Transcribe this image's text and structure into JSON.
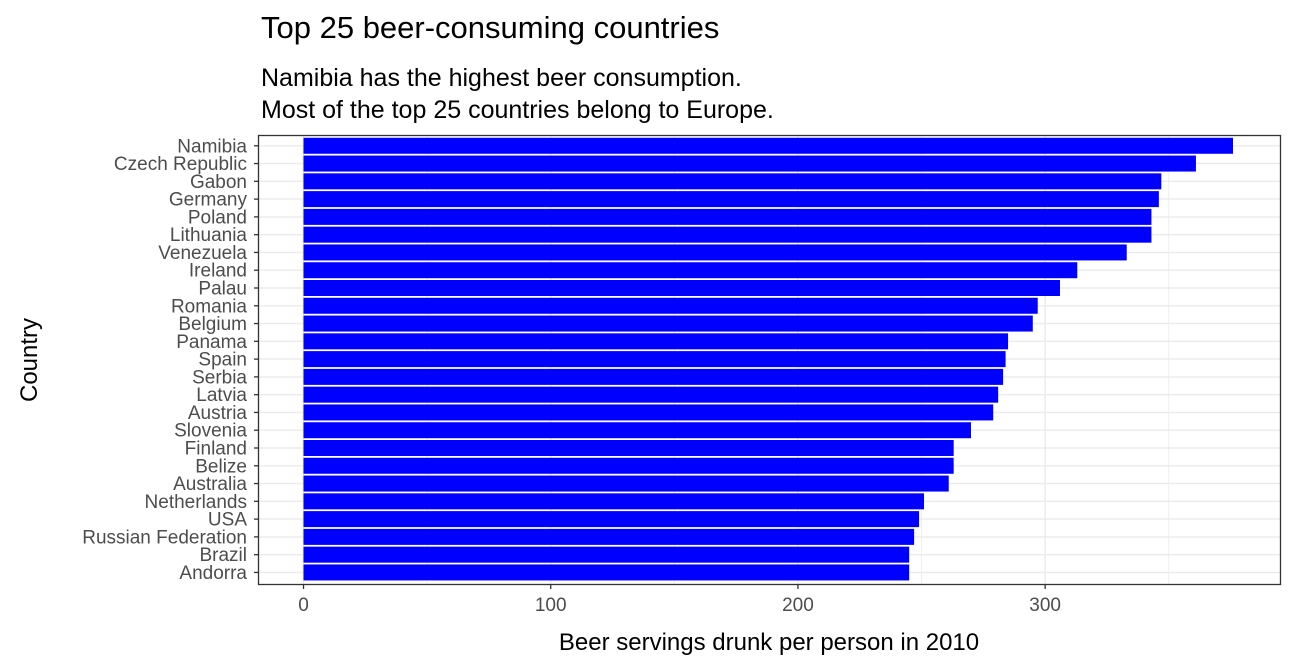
{
  "chart_data": {
    "type": "bar",
    "orientation": "horizontal",
    "title": "Top 25 beer-consuming countries",
    "subtitle": [
      "Namibia has the highest beer consumption.",
      "Most of the top 25 countries belong to Europe."
    ],
    "xlabel": "Beer servings drunk per person in 2010",
    "ylabel": "Country",
    "xlim": [
      -18,
      395
    ],
    "xticks": [
      0,
      100,
      200,
      300
    ],
    "grid": true,
    "bar_color": "#0000ff",
    "categories": [
      "Namibia",
      "Czech Republic",
      "Gabon",
      "Germany",
      "Poland",
      "Lithuania",
      "Venezuela",
      "Ireland",
      "Palau",
      "Romania",
      "Belgium",
      "Panama",
      "Spain",
      "Serbia",
      "Latvia",
      "Austria",
      "Slovenia",
      "Finland",
      "Belize",
      "Australia",
      "Netherlands",
      "USA",
      "Russian Federation",
      "Brazil",
      "Andorra"
    ],
    "values": [
      376,
      361,
      347,
      346,
      343,
      343,
      333,
      313,
      306,
      297,
      295,
      285,
      284,
      283,
      281,
      279,
      270,
      263,
      263,
      261,
      251,
      249,
      247,
      245,
      245
    ]
  }
}
